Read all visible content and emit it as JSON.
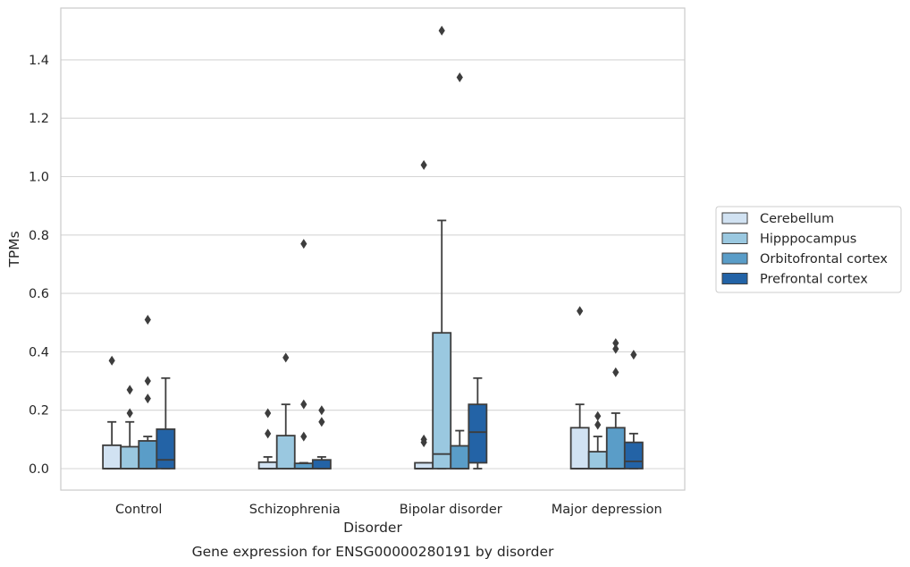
{
  "chart_data": {
    "type": "box",
    "title": "",
    "caption": "Gene expression for ENSG00000280191 by disorder",
    "xlabel": "Disorder",
    "ylabel": "TPMs",
    "ylim": [
      -0.07,
      1.58
    ],
    "yticks": [
      "0.0",
      "0.2",
      "0.4",
      "0.6",
      "0.8",
      "1.0",
      "1.2",
      "1.4"
    ],
    "grid": true,
    "legend_position": "right",
    "categories": [
      "Control",
      "Schizophrenia",
      "Bipolar disorder",
      "Major depression"
    ],
    "series": [
      {
        "name": "Cerebellum",
        "color": "#d1e2f2",
        "boxes": [
          {
            "q1": 0.0,
            "median": 0.0,
            "q3": 0.08,
            "whislo": 0.0,
            "whishi": 0.16,
            "fliers": [
              0.37
            ]
          },
          {
            "q1": 0.0,
            "median": 0.0,
            "q3": 0.022,
            "whislo": 0.0,
            "whishi": 0.04,
            "fliers": [
              0.12,
              0.19
            ]
          },
          {
            "q1": 0.0,
            "median": 0.0,
            "q3": 0.02,
            "whislo": 0.0,
            "whishi": 0.02,
            "fliers": [
              0.09,
              0.1,
              1.04
            ]
          },
          {
            "q1": 0.0,
            "median": 0.0,
            "q3": 0.14,
            "whislo": 0.0,
            "whishi": 0.22,
            "fliers": [
              0.54
            ]
          }
        ]
      },
      {
        "name": "Hipppocampus",
        "color": "#9ac8e0",
        "boxes": [
          {
            "q1": 0.0,
            "median": 0.0,
            "q3": 0.075,
            "whislo": 0.0,
            "whishi": 0.16,
            "fliers": [
              0.19,
              0.27
            ]
          },
          {
            "q1": 0.0,
            "median": 0.0,
            "q3": 0.113,
            "whislo": 0.0,
            "whishi": 0.22,
            "fliers": [
              0.38
            ]
          },
          {
            "q1": 0.0,
            "median": 0.05,
            "q3": 0.465,
            "whislo": 0.0,
            "whishi": 0.85,
            "fliers": [
              1.5
            ]
          },
          {
            "q1": 0.0,
            "median": 0.0,
            "q3": 0.058,
            "whislo": 0.0,
            "whishi": 0.11,
            "fliers": [
              0.15,
              0.18
            ]
          }
        ]
      },
      {
        "name": "Orbitofrontal cortex",
        "color": "#5a9dc8",
        "boxes": [
          {
            "q1": 0.0,
            "median": 0.0,
            "q3": 0.095,
            "whislo": 0.0,
            "whishi": 0.11,
            "fliers": [
              0.24,
              0.3,
              0.51
            ]
          },
          {
            "q1": 0.0,
            "median": 0.0,
            "q3": 0.018,
            "whislo": 0.0,
            "whishi": 0.02,
            "fliers": [
              0.11,
              0.22,
              0.77
            ]
          },
          {
            "q1": 0.0,
            "median": 0.0,
            "q3": 0.078,
            "whislo": 0.0,
            "whishi": 0.13,
            "fliers": [
              1.34
            ]
          },
          {
            "q1": 0.0,
            "median": 0.0,
            "q3": 0.14,
            "whislo": 0.0,
            "whishi": 0.19,
            "fliers": [
              0.33,
              0.41,
              0.43
            ]
          }
        ]
      },
      {
        "name": "Prefrontal cortex",
        "color": "#2363a6",
        "boxes": [
          {
            "q1": 0.0,
            "median": 0.03,
            "q3": 0.135,
            "whislo": 0.0,
            "whishi": 0.31,
            "fliers": []
          },
          {
            "q1": 0.0,
            "median": 0.0,
            "q3": 0.03,
            "whislo": 0.0,
            "whishi": 0.04,
            "fliers": [
              0.16,
              0.2
            ]
          },
          {
            "q1": 0.02,
            "median": 0.125,
            "q3": 0.22,
            "whislo": 0.0,
            "whishi": 0.31,
            "fliers": []
          },
          {
            "q1": 0.0,
            "median": 0.025,
            "q3": 0.09,
            "whislo": 0.0,
            "whishi": 0.12,
            "fliers": [
              0.39
            ]
          }
        ]
      }
    ]
  }
}
